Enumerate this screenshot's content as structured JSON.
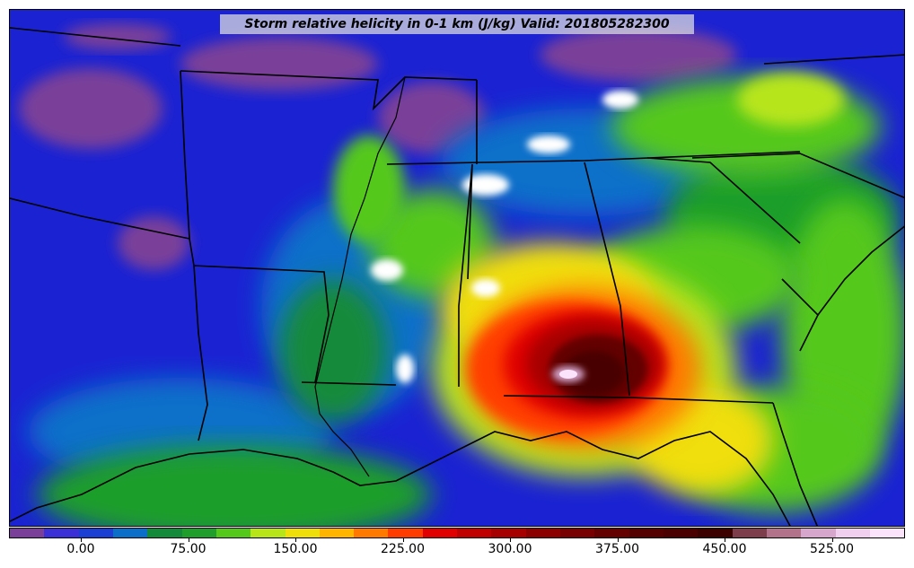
{
  "title": "Storm relative helicity in 0-1 km (J/kg) Valid: 201805282300",
  "colorbar": {
    "colors": [
      "#7a3f99",
      "#3b2fd6",
      "#1a3fd2",
      "#0b6fc9",
      "#128a3a",
      "#1f9e2c",
      "#54c81b",
      "#b7e51a",
      "#f0de0a",
      "#ffb400",
      "#ff7800",
      "#ff3c00",
      "#e00000",
      "#c00000",
      "#a60000",
      "#8c0000",
      "#780000",
      "#640000",
      "#550000",
      "#4a0000",
      "#3c0000",
      "#7d3d4a",
      "#b2728a",
      "#d6a6cc",
      "#f0cfee",
      "#fbe4fb"
    ],
    "tick_labels": [
      "0.00",
      "75.00",
      "150.00",
      "225.00",
      "300.00",
      "375.00",
      "450.00",
      "525.00"
    ]
  }
}
